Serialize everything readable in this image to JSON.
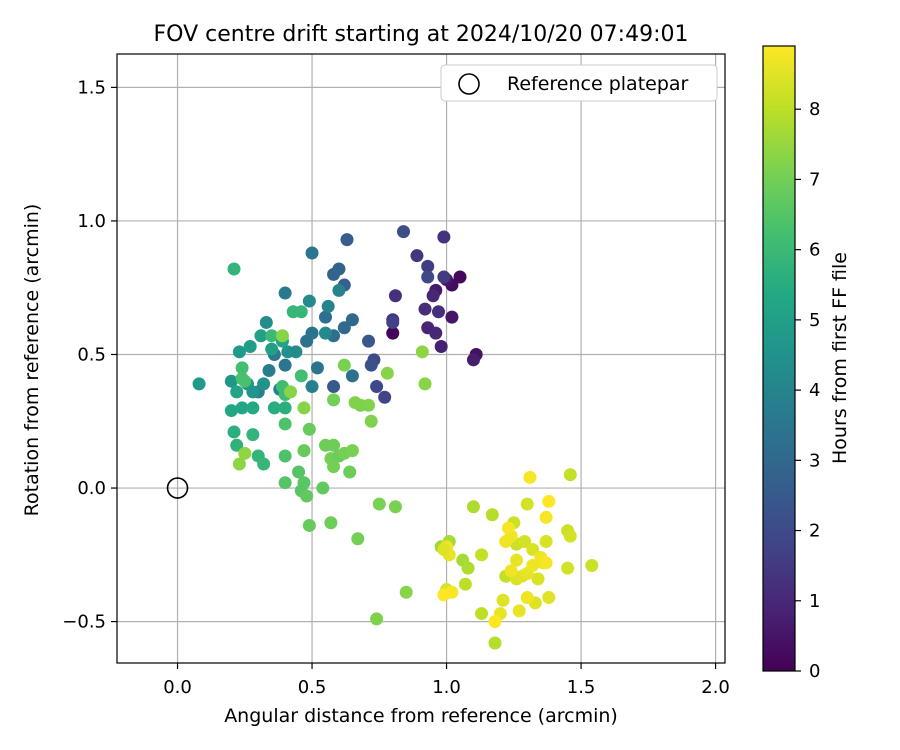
{
  "chart_data": {
    "type": "scatter",
    "title": "FOV centre drift starting at 2024/10/20 07:49:01",
    "xlabel": "Angular distance from reference (arcmin)",
    "ylabel": "Rotation from reference (arcmin)",
    "xlim": [
      -0.225,
      2.035
    ],
    "ylim": [
      -0.655,
      1.625
    ],
    "x_ticks": [
      0.0,
      0.5,
      1.0,
      1.5,
      2.0
    ],
    "x_tick_labels": [
      "0.0",
      "0.5",
      "1.0",
      "1.5",
      "2.0"
    ],
    "y_ticks": [
      -0.5,
      0.0,
      0.5,
      1.0,
      1.5
    ],
    "y_tick_labels": [
      "−0.5",
      "0.0",
      "0.5",
      "1.0",
      "1.5"
    ],
    "grid": true,
    "colormap": "viridis",
    "colorbar": {
      "label": "Hours from first FF file",
      "range": [
        0,
        8.9
      ],
      "ticks": [
        0,
        1,
        2,
        3,
        4,
        5,
        6,
        7,
        8
      ],
      "tick_labels": [
        "0",
        "1",
        "2",
        "3",
        "4",
        "5",
        "6",
        "7",
        "8"
      ]
    },
    "legend": {
      "position": "top-right",
      "entries": [
        {
          "label": "Reference platepar",
          "marker": "hollow-circle"
        }
      ]
    },
    "reference_point": {
      "x": 0.0,
      "y": 0.0
    },
    "points": [
      {
        "x": 0.8,
        "y": 0.58,
        "t": 0.1
      },
      {
        "x": 1.05,
        "y": 0.79,
        "t": 0.2
      },
      {
        "x": 1.02,
        "y": 0.76,
        "t": 0.3
      },
      {
        "x": 1.0,
        "y": 0.78,
        "t": 0.5
      },
      {
        "x": 0.96,
        "y": 0.74,
        "t": 0.6
      },
      {
        "x": 1.11,
        "y": 0.5,
        "t": 0.4
      },
      {
        "x": 1.1,
        "y": 0.48,
        "t": 0.7
      },
      {
        "x": 1.02,
        "y": 0.64,
        "t": 0.5
      },
      {
        "x": 0.98,
        "y": 0.53,
        "t": 0.8
      },
      {
        "x": 0.93,
        "y": 0.6,
        "t": 0.9
      },
      {
        "x": 0.96,
        "y": 0.58,
        "t": 1.0
      },
      {
        "x": 0.92,
        "y": 0.67,
        "t": 1.1
      },
      {
        "x": 0.97,
        "y": 0.66,
        "t": 1.2
      },
      {
        "x": 0.99,
        "y": 0.94,
        "t": 1.3
      },
      {
        "x": 0.95,
        "y": 0.72,
        "t": 1.0
      },
      {
        "x": 0.81,
        "y": 0.72,
        "t": 1.2
      },
      {
        "x": 0.89,
        "y": 0.87,
        "t": 1.4
      },
      {
        "x": 0.99,
        "y": 0.79,
        "t": 1.5
      },
      {
        "x": 0.93,
        "y": 0.83,
        "t": 1.6
      },
      {
        "x": 0.8,
        "y": 0.63,
        "t": 1.4
      },
      {
        "x": 0.8,
        "y": 0.62,
        "t": 1.7
      },
      {
        "x": 0.93,
        "y": 0.79,
        "t": 1.9
      },
      {
        "x": 0.77,
        "y": 0.34,
        "t": 1.8
      },
      {
        "x": 0.74,
        "y": 0.38,
        "t": 1.9
      },
      {
        "x": 0.73,
        "y": 0.48,
        "t": 2.0
      },
      {
        "x": 0.84,
        "y": 0.96,
        "t": 2.1
      },
      {
        "x": 0.72,
        "y": 0.46,
        "t": 2.2
      },
      {
        "x": 0.71,
        "y": 0.55,
        "t": 2.4
      },
      {
        "x": 0.58,
        "y": 0.38,
        "t": 2.5
      },
      {
        "x": 0.63,
        "y": 0.93,
        "t": 2.6
      },
      {
        "x": 0.62,
        "y": 0.76,
        "t": 2.7
      },
      {
        "x": 0.6,
        "y": 0.82,
        "t": 2.8
      },
      {
        "x": 0.58,
        "y": 0.8,
        "t": 2.9
      },
      {
        "x": 0.65,
        "y": 0.63,
        "t": 3.0
      },
      {
        "x": 0.62,
        "y": 0.6,
        "t": 3.1
      },
      {
        "x": 0.55,
        "y": 0.64,
        "t": 3.2
      },
      {
        "x": 0.58,
        "y": 0.57,
        "t": 3.2
      },
      {
        "x": 0.65,
        "y": 0.42,
        "t": 3.3
      },
      {
        "x": 0.5,
        "y": 0.58,
        "t": 3.4
      },
      {
        "x": 0.5,
        "y": 0.88,
        "t": 3.5
      },
      {
        "x": 0.4,
        "y": 0.73,
        "t": 3.6
      },
      {
        "x": 0.48,
        "y": 0.55,
        "t": 3.3
      },
      {
        "x": 0.52,
        "y": 0.45,
        "t": 3.4
      },
      {
        "x": 0.4,
        "y": 0.46,
        "t": 3.5
      },
      {
        "x": 0.36,
        "y": 0.5,
        "t": 3.6
      },
      {
        "x": 0.34,
        "y": 0.44,
        "t": 3.7
      },
      {
        "x": 0.3,
        "y": 0.36,
        "t": 3.8
      },
      {
        "x": 0.38,
        "y": 0.37,
        "t": 3.9
      },
      {
        "x": 0.5,
        "y": 0.38,
        "t": 3.8
      },
      {
        "x": 0.6,
        "y": 0.74,
        "t": 3.9
      },
      {
        "x": 0.56,
        "y": 0.68,
        "t": 4.0
      },
      {
        "x": 0.49,
        "y": 0.7,
        "t": 4.2
      },
      {
        "x": 0.33,
        "y": 0.62,
        "t": 4.3
      },
      {
        "x": 0.41,
        "y": 0.51,
        "t": 4.4
      },
      {
        "x": 0.55,
        "y": 0.58,
        "t": 4.2
      },
      {
        "x": 0.44,
        "y": 0.51,
        "t": 4.3
      },
      {
        "x": 0.32,
        "y": 0.39,
        "t": 4.5
      },
      {
        "x": 0.28,
        "y": 0.36,
        "t": 4.6
      },
      {
        "x": 0.26,
        "y": 0.39,
        "t": 4.7
      },
      {
        "x": 0.08,
        "y": 0.39,
        "t": 4.8
      },
      {
        "x": 0.2,
        "y": 0.4,
        "t": 4.7
      },
      {
        "x": 0.23,
        "y": 0.51,
        "t": 4.8
      },
      {
        "x": 0.27,
        "y": 0.53,
        "t": 4.9
      },
      {
        "x": 0.31,
        "y": 0.57,
        "t": 5.0
      },
      {
        "x": 0.35,
        "y": 0.52,
        "t": 5.0
      },
      {
        "x": 0.39,
        "y": 0.55,
        "t": 5.1
      },
      {
        "x": 0.22,
        "y": 0.36,
        "t": 5.2
      },
      {
        "x": 0.2,
        "y": 0.29,
        "t": 5.3
      },
      {
        "x": 0.24,
        "y": 0.3,
        "t": 5.3
      },
      {
        "x": 0.28,
        "y": 0.3,
        "t": 5.4
      },
      {
        "x": 0.36,
        "y": 0.3,
        "t": 5.5
      },
      {
        "x": 0.4,
        "y": 0.3,
        "t": 5.6
      },
      {
        "x": 0.21,
        "y": 0.21,
        "t": 5.6
      },
      {
        "x": 0.22,
        "y": 0.16,
        "t": 5.7
      },
      {
        "x": 0.28,
        "y": 0.2,
        "t": 5.8
      },
      {
        "x": 0.3,
        "y": 0.12,
        "t": 5.8
      },
      {
        "x": 0.32,
        "y": 0.09,
        "t": 5.9
      },
      {
        "x": 0.21,
        "y": 0.82,
        "t": 5.8
      },
      {
        "x": 0.43,
        "y": 0.66,
        "t": 5.9
      },
      {
        "x": 0.46,
        "y": 0.66,
        "t": 5.9
      },
      {
        "x": 0.35,
        "y": 0.57,
        "t": 6.0
      },
      {
        "x": 0.39,
        "y": 0.38,
        "t": 6.1
      },
      {
        "x": 0.4,
        "y": 0.35,
        "t": 6.1
      },
      {
        "x": 0.46,
        "y": 0.42,
        "t": 6.2
      },
      {
        "x": 0.24,
        "y": 0.45,
        "t": 6.2
      },
      {
        "x": 0.24,
        "y": 0.41,
        "t": 6.3
      },
      {
        "x": 0.25,
        "y": 0.4,
        "t": 6.3
      },
      {
        "x": 0.4,
        "y": 0.24,
        "t": 6.4
      },
      {
        "x": 0.4,
        "y": 0.12,
        "t": 6.4
      },
      {
        "x": 0.45,
        "y": 0.06,
        "t": 6.5
      },
      {
        "x": 0.4,
        "y": 0.02,
        "t": 6.5
      },
      {
        "x": 0.47,
        "y": 0.02,
        "t": 6.6
      },
      {
        "x": 0.46,
        "y": -0.01,
        "t": 6.6
      },
      {
        "x": 0.48,
        "y": -0.03,
        "t": 6.7
      },
      {
        "x": 0.54,
        "y": 0.0,
        "t": 6.7
      },
      {
        "x": 0.49,
        "y": 0.22,
        "t": 6.8
      },
      {
        "x": 0.47,
        "y": 0.14,
        "t": 6.8
      },
      {
        "x": 0.55,
        "y": 0.16,
        "t": 6.9
      },
      {
        "x": 0.58,
        "y": 0.16,
        "t": 6.9
      },
      {
        "x": 0.57,
        "y": 0.11,
        "t": 7.0
      },
      {
        "x": 0.6,
        "y": 0.12,
        "t": 6.9
      },
      {
        "x": 0.62,
        "y": 0.13,
        "t": 7.0
      },
      {
        "x": 0.65,
        "y": 0.14,
        "t": 7.1
      },
      {
        "x": 0.64,
        "y": 0.06,
        "t": 6.9
      },
      {
        "x": 0.58,
        "y": 0.08,
        "t": 7.0
      },
      {
        "x": 0.58,
        "y": 0.33,
        "t": 7.0
      },
      {
        "x": 0.62,
        "y": 0.46,
        "t": 7.1
      },
      {
        "x": 0.68,
        "y": 0.31,
        "t": 7.1
      },
      {
        "x": 0.66,
        "y": 0.32,
        "t": 7.2
      },
      {
        "x": 0.71,
        "y": 0.31,
        "t": 7.2
      },
      {
        "x": 0.72,
        "y": 0.25,
        "t": 7.2
      },
      {
        "x": 0.47,
        "y": 0.3,
        "t": 7.3
      },
      {
        "x": 0.42,
        "y": 0.36,
        "t": 7.3
      },
      {
        "x": 0.39,
        "y": 0.57,
        "t": 7.3
      },
      {
        "x": 0.49,
        "y": -0.14,
        "t": 6.8
      },
      {
        "x": 0.57,
        "y": -0.13,
        "t": 6.9
      },
      {
        "x": 0.67,
        "y": -0.19,
        "t": 7.0
      },
      {
        "x": 0.75,
        "y": -0.06,
        "t": 7.1
      },
      {
        "x": 0.81,
        "y": -0.07,
        "t": 7.1
      },
      {
        "x": 0.74,
        "y": -0.49,
        "t": 7.2
      },
      {
        "x": 0.85,
        "y": -0.39,
        "t": 7.3
      },
      {
        "x": 0.78,
        "y": 0.43,
        "t": 7.3
      },
      {
        "x": 0.92,
        "y": 0.39,
        "t": 7.3
      },
      {
        "x": 0.91,
        "y": 0.51,
        "t": 7.4
      },
      {
        "x": 0.23,
        "y": 0.09,
        "t": 7.4
      },
      {
        "x": 0.25,
        "y": 0.13,
        "t": 7.4
      },
      {
        "x": 0.98,
        "y": -0.22,
        "t": 7.6
      },
      {
        "x": 1.01,
        "y": -0.2,
        "t": 7.7
      },
      {
        "x": 1.06,
        "y": -0.27,
        "t": 7.7
      },
      {
        "x": 1.08,
        "y": -0.3,
        "t": 7.8
      },
      {
        "x": 1.1,
        "y": -0.07,
        "t": 7.8
      },
      {
        "x": 1.17,
        "y": -0.1,
        "t": 7.9
      },
      {
        "x": 1.18,
        "y": -0.58,
        "t": 7.9
      },
      {
        "x": 1.13,
        "y": -0.47,
        "t": 8.0
      },
      {
        "x": 1.07,
        "y": -0.36,
        "t": 8.0
      },
      {
        "x": 1.13,
        "y": -0.25,
        "t": 8.1
      },
      {
        "x": 1.22,
        "y": -0.33,
        "t": 8.1
      },
      {
        "x": 1.25,
        "y": -0.13,
        "t": 8.2
      },
      {
        "x": 1.26,
        "y": -0.21,
        "t": 8.2
      },
      {
        "x": 1.29,
        "y": -0.2,
        "t": 8.3
      },
      {
        "x": 1.3,
        "y": -0.06,
        "t": 8.3
      },
      {
        "x": 1.32,
        "y": -0.23,
        "t": 8.4
      },
      {
        "x": 1.37,
        "y": -0.2,
        "t": 8.4
      },
      {
        "x": 1.38,
        "y": -0.41,
        "t": 8.5
      },
      {
        "x": 1.33,
        "y": -0.43,
        "t": 8.5
      },
      {
        "x": 1.46,
        "y": 0.05,
        "t": 8.1
      },
      {
        "x": 1.45,
        "y": -0.16,
        "t": 8.2
      },
      {
        "x": 1.46,
        "y": -0.18,
        "t": 8.3
      },
      {
        "x": 1.45,
        "y": -0.3,
        "t": 8.3
      },
      {
        "x": 1.54,
        "y": -0.29,
        "t": 8.2
      },
      {
        "x": 1.36,
        "y": -0.28,
        "t": 8.6
      },
      {
        "x": 1.26,
        "y": -0.27,
        "t": 8.6
      },
      {
        "x": 1.24,
        "y": -0.18,
        "t": 8.7
      },
      {
        "x": 1.22,
        "y": -0.2,
        "t": 8.7
      },
      {
        "x": 1.23,
        "y": -0.15,
        "t": 8.8
      },
      {
        "x": 1.31,
        "y": 0.04,
        "t": 8.8
      },
      {
        "x": 1.37,
        "y": -0.11,
        "t": 8.8
      },
      {
        "x": 1.38,
        "y": -0.05,
        "t": 8.9
      },
      {
        "x": 1.21,
        "y": -0.42,
        "t": 8.5
      },
      {
        "x": 1.27,
        "y": -0.46,
        "t": 8.6
      },
      {
        "x": 1.2,
        "y": -0.47,
        "t": 8.6
      },
      {
        "x": 1.3,
        "y": -0.41,
        "t": 8.7
      },
      {
        "x": 1.34,
        "y": -0.34,
        "t": 8.4
      },
      {
        "x": 1.26,
        "y": -0.34,
        "t": 8.4
      },
      {
        "x": 1.28,
        "y": -0.33,
        "t": 8.5
      },
      {
        "x": 1.3,
        "y": -0.32,
        "t": 8.6
      },
      {
        "x": 1.35,
        "y": -0.26,
        "t": 8.7
      },
      {
        "x": 1.37,
        "y": -0.28,
        "t": 8.8
      },
      {
        "x": 1.0,
        "y": -0.22,
        "t": 8.7
      },
      {
        "x": 1.01,
        "y": -0.25,
        "t": 8.6
      },
      {
        "x": 0.99,
        "y": -0.23,
        "t": 8.5
      },
      {
        "x": 1.0,
        "y": -0.38,
        "t": 8.4
      },
      {
        "x": 1.02,
        "y": -0.39,
        "t": 8.8
      },
      {
        "x": 0.99,
        "y": -0.4,
        "t": 8.9
      },
      {
        "x": 1.18,
        "y": -0.5,
        "t": 8.9
      },
      {
        "x": 1.24,
        "y": -0.31,
        "t": 8.7
      },
      {
        "x": 1.32,
        "y": -0.29,
        "t": 8.7
      }
    ]
  }
}
